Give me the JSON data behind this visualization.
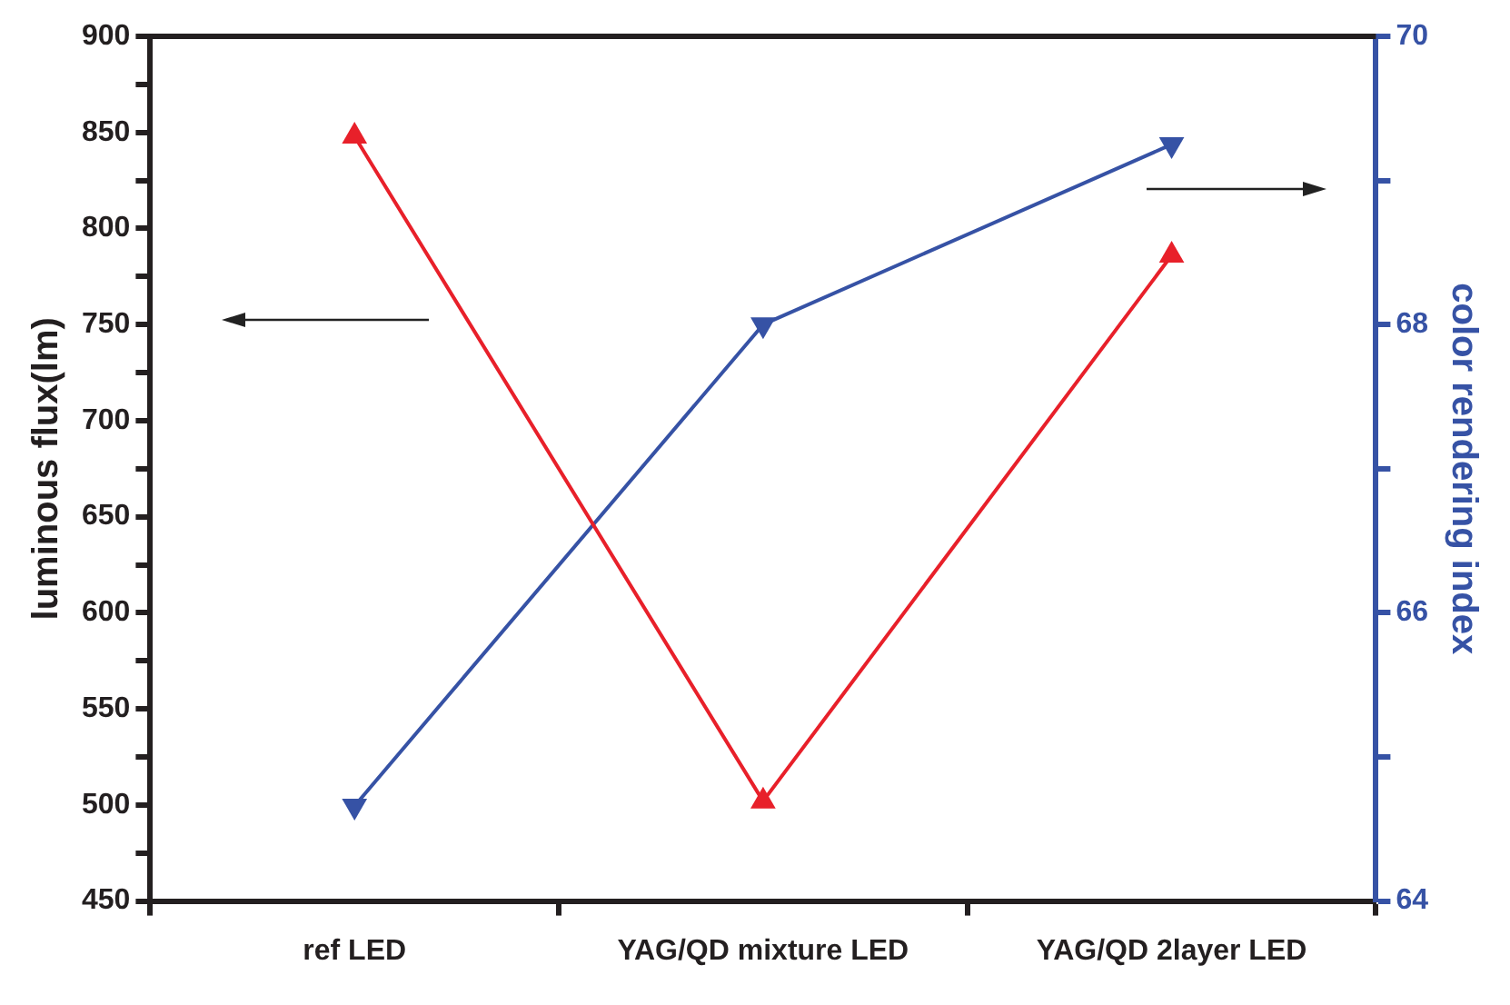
{
  "chart_data": {
    "type": "line",
    "categories": [
      "ref LED",
      "YAG/QD mixture LED",
      "YAG/QD 2layer LED"
    ],
    "ylabel": "luminous flux(lm)",
    "y2label": "color rendering index",
    "ylim": [
      450,
      900
    ],
    "yticks": [
      450,
      {
        "value": 475,
        "label": null
      },
      500,
      {
        "value": 525,
        "label": null
      },
      550,
      {
        "value": 575,
        "label": null
      },
      600,
      {
        "value": 625,
        "label": null
      },
      650,
      {
        "value": 675,
        "label": null
      },
      700,
      {
        "value": 725,
        "label": null
      },
      750,
      {
        "value": 775,
        "label": null
      },
      800,
      {
        "value": 825,
        "label": null
      },
      850,
      {
        "value": 875,
        "label": null
      },
      900
    ],
    "y2lim": [
      64,
      70
    ],
    "y2ticks": [
      64,
      {
        "value": 65,
        "label": null
      },
      66,
      {
        "value": 67,
        "label": null
      },
      68,
      {
        "value": 69,
        "label": null
      },
      70
    ],
    "series": [
      {
        "color": "#e8202a",
        "values": [
          848,
          502,
          786
        ],
        "marker": "triangle"
      },
      {
        "color": "#3652a5",
        "values": [
          64.66,
          68.0,
          69.25
        ],
        "axis": "y2",
        "marker": "triangle"
      }
    ],
    "grid": false,
    "legend": false,
    "line_style": "solid"
  }
}
